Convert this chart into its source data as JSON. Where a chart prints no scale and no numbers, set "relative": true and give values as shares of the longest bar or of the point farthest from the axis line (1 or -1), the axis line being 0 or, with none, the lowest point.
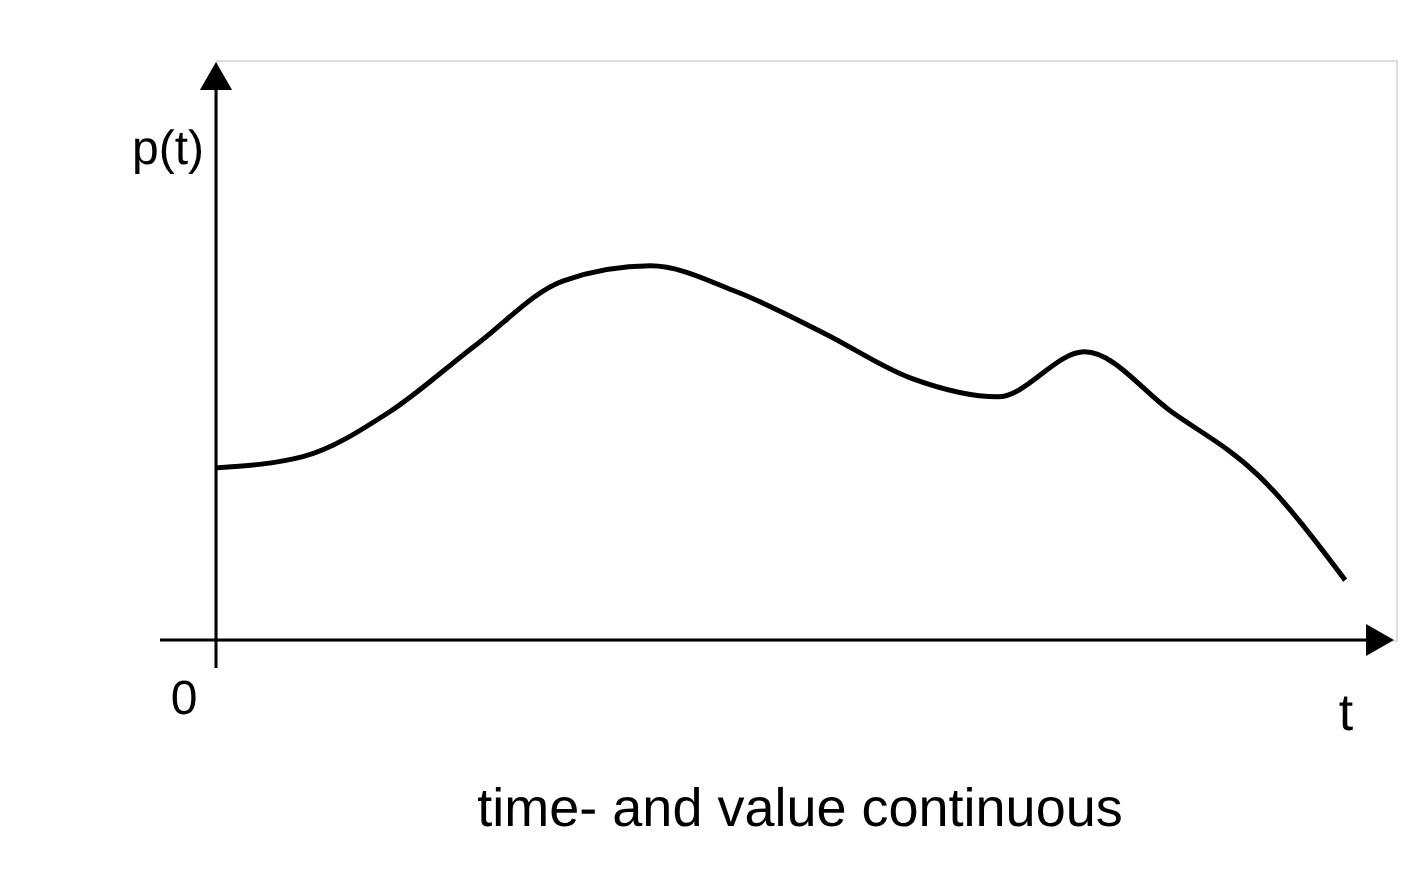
{
  "chart_data": {
    "type": "line",
    "relative": true,
    "tick_labels": false,
    "grid": false,
    "legend": false,
    "xlabel": "t",
    "ylabel": "p(t)",
    "categories": [
      null,
      null,
      null,
      null,
      null,
      null,
      null,
      null,
      null,
      null,
      null,
      null,
      null,
      null
    ],
    "series": [
      {
        "color": "#000000",
        "values": [
          0.46,
          0.49,
          0.61,
          0.79,
          0.96,
          1.0,
          0.93,
          0.82,
          0.7,
          0.65,
          0.77,
          0.61,
          0.44,
          0.16
        ]
      }
    ],
    "annotations": [
      "0",
      "time- and value continuous"
    ]
  }
}
